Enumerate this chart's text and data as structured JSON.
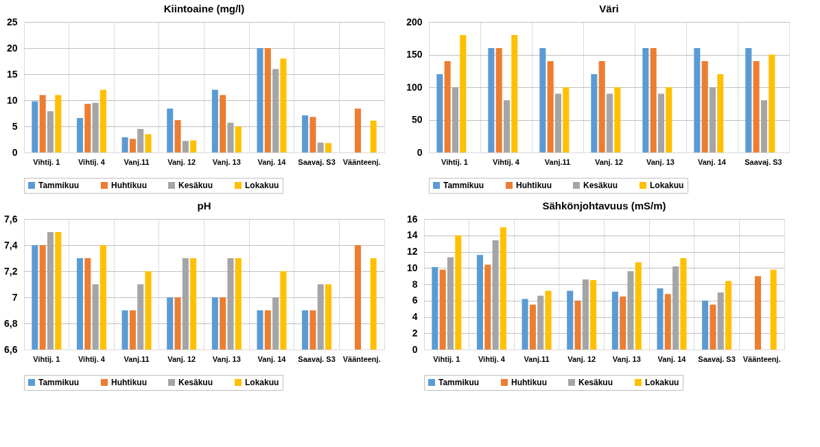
{
  "chart_data": [
    {
      "type": "bar",
      "title": "Kiintoaine (mg/l)",
      "categories": [
        "Vihtij. 1",
        "Vihtij. 4",
        "Vanj.11",
        "Vanj. 12",
        "Vanj. 13",
        "Vanj. 14",
        "Saavaj. S3",
        "Väänteenj."
      ],
      "series": [
        {
          "name": "Tammikuu",
          "color": "#5b9bd5",
          "values": [
            9.8,
            6.6,
            2.9,
            8.4,
            12,
            20,
            7.1,
            null
          ]
        },
        {
          "name": "Huhtikuu",
          "color": "#ed7d31",
          "values": [
            11,
            9.3,
            2.6,
            6.2,
            11,
            20,
            6.8,
            8.4
          ]
        },
        {
          "name": "Kesäkuu",
          "color": "#a5a5a5",
          "values": [
            7.9,
            9.5,
            4.5,
            2.2,
            5.7,
            16,
            1.9,
            null
          ]
        },
        {
          "name": "Lokakuu",
          "color": "#ffc000",
          "values": [
            11,
            12,
            3.5,
            2.3,
            5,
            18,
            1.8,
            6.1
          ]
        }
      ],
      "ylim": [
        0,
        25
      ],
      "yticks": [
        0,
        5,
        10,
        15,
        20,
        25
      ],
      "grid": true,
      "legend": "bottom"
    },
    {
      "type": "bar",
      "title": "Väri",
      "categories": [
        "Vihtij. 1",
        "Vihtij. 4",
        "Vanj.11",
        "Vanj. 12",
        "Vanj. 13",
        "Vanj. 14",
        "Saavaj. S3"
      ],
      "series": [
        {
          "name": "Tammikuu",
          "color": "#5b9bd5",
          "values": [
            120,
            160,
            160,
            120,
            160,
            160,
            160
          ]
        },
        {
          "name": "Huhtikuu",
          "color": "#ed7d31",
          "values": [
            140,
            160,
            140,
            140,
            160,
            140,
            140
          ]
        },
        {
          "name": "Kesäkuu",
          "color": "#a5a5a5",
          "values": [
            100,
            80,
            90,
            90,
            90,
            100,
            80
          ]
        },
        {
          "name": "Lokakuu",
          "color": "#ffc000",
          "values": [
            180,
            180,
            100,
            100,
            100,
            120,
            150
          ]
        }
      ],
      "ylim": [
        0,
        200
      ],
      "yticks": [
        0,
        50,
        100,
        150,
        200
      ],
      "grid": true,
      "legend": "bottom"
    },
    {
      "type": "bar",
      "title": "pH",
      "categories": [
        "Vihtij. 1",
        "Vihtij. 4",
        "Vanj.11",
        "Vanj. 12",
        "Vanj. 13",
        "Vanj. 14",
        "Saavaj. S3",
        "Väänteenj."
      ],
      "series": [
        {
          "name": "Tammikuu",
          "color": "#5b9bd5",
          "values": [
            7.4,
            7.3,
            6.9,
            7.0,
            7.0,
            6.9,
            6.9,
            null
          ]
        },
        {
          "name": "Huhtikuu",
          "color": "#ed7d31",
          "values": [
            7.4,
            7.3,
            6.9,
            7.0,
            7.0,
            6.9,
            6.9,
            7.4
          ]
        },
        {
          "name": "Kesäkuu",
          "color": "#a5a5a5",
          "values": [
            7.5,
            7.1,
            7.1,
            7.3,
            7.3,
            7.0,
            7.1,
            null
          ]
        },
        {
          "name": "Lokakuu",
          "color": "#ffc000",
          "values": [
            7.5,
            7.4,
            7.2,
            7.3,
            7.3,
            7.2,
            7.1,
            7.3
          ]
        }
      ],
      "ylim": [
        6.6,
        7.6
      ],
      "yticks": [
        {
          "value": 6.6,
          "label": "6,6"
        },
        {
          "value": 6.8,
          "label": "6,8"
        },
        7,
        {
          "value": 7.2,
          "label": "7,2"
        },
        {
          "value": 7.4,
          "label": "7,4"
        },
        {
          "value": 7.6,
          "label": "7,6"
        }
      ],
      "grid": true,
      "legend": "bottom"
    },
    {
      "type": "bar",
      "title": "Sähkönjohtavuus (mS/m)",
      "categories": [
        "Vihtij. 1",
        "Vihtij. 4",
        "Vanj.11",
        "Vanj. 12",
        "Vanj. 13",
        "Vanj. 14",
        "Saavaj. S3",
        "Väänteenj."
      ],
      "series": [
        {
          "name": "Tammikuu",
          "color": "#5b9bd5",
          "values": [
            10.1,
            11.6,
            6.2,
            7.2,
            7.1,
            7.5,
            6.0,
            null
          ]
        },
        {
          "name": "Huhtikuu",
          "color": "#ed7d31",
          "values": [
            9.8,
            10.4,
            5.5,
            6.0,
            6.5,
            6.8,
            5.5,
            9.0
          ]
        },
        {
          "name": "Kesäkuu",
          "color": "#a5a5a5",
          "values": [
            11.3,
            13.4,
            6.6,
            8.6,
            9.6,
            10.2,
            7.0,
            null
          ]
        },
        {
          "name": "Lokakuu",
          "color": "#ffc000",
          "values": [
            14,
            15,
            7.2,
            8.5,
            10.7,
            11.2,
            8.4,
            9.8
          ]
        }
      ],
      "ylim": [
        0,
        16
      ],
      "yticks": [
        0,
        2,
        4,
        6,
        8,
        10,
        12,
        14,
        16
      ],
      "grid": true,
      "legend": "bottom"
    }
  ]
}
